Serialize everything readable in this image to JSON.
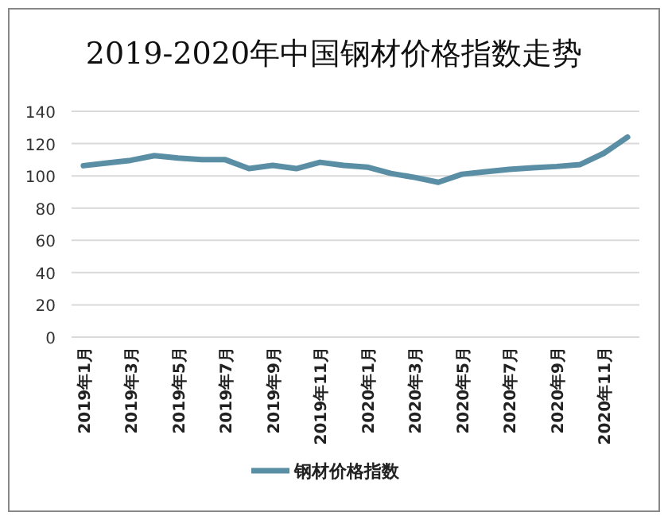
{
  "chart_data": {
    "type": "line",
    "title": "2019-2020年中国钢材价格指数走势",
    "categories": [
      "2019年1月",
      null,
      "2019年3月",
      null,
      "2019年5月",
      null,
      "2019年7月",
      null,
      "2019年9月",
      null,
      "2019年11月",
      null,
      "2020年1月",
      null,
      "2020年3月",
      null,
      "2020年5月",
      null,
      "2020年7月",
      null,
      "2020年9月",
      null,
      "2020年11月",
      null
    ],
    "series": [
      {
        "name": "钢材价格指数",
        "color": "#5a8ea5",
        "values": [
          106.3,
          108,
          109.6,
          112.5,
          111,
          110,
          110,
          104.5,
          106.5,
          104.5,
          108.4,
          106.5,
          105.4,
          101.5,
          99,
          96,
          101,
          102.5,
          104,
          105,
          105.8,
          107,
          114,
          124
        ]
      }
    ],
    "ylim": [
      0,
      140
    ],
    "yticks": [
      0,
      20,
      40,
      60,
      80,
      100,
      120,
      140
    ],
    "grid": "y",
    "legend": "bottom",
    "marker": "none",
    "line_style": "solid"
  }
}
